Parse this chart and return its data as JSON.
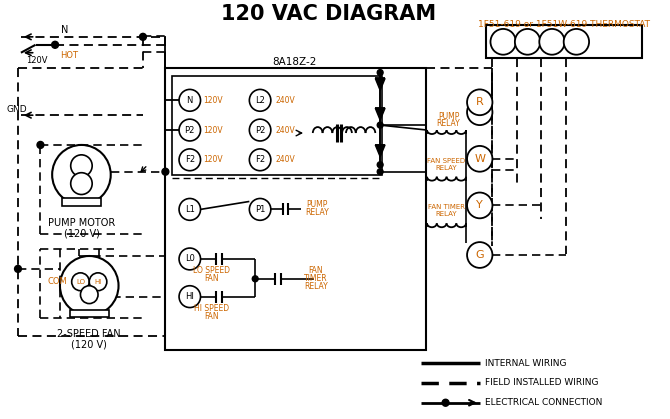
{
  "title": "120 VAC DIAGRAM",
  "bg_color": "#ffffff",
  "black": "#000000",
  "orange": "#cc6600",
  "thermostat_label": "1F51-619 or 1F51W-619 THERMOSTAT",
  "control_label": "8A18Z-2",
  "pump_motor_label1": "PUMP MOTOR",
  "pump_motor_label2": "(120 V)",
  "fan_label1": "2-SPEED FAN",
  "fan_label2": "(120 V)",
  "legend1": "INTERNAL WIRING",
  "legend2": "FIELD INSTALLED WIRING",
  "legend3": "ELECTRICAL CONNECTION"
}
